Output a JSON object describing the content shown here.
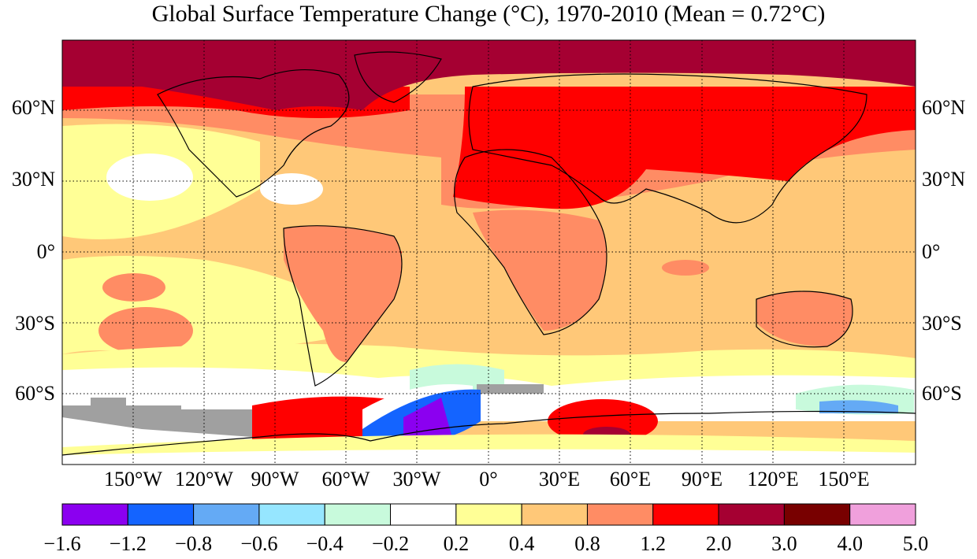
{
  "title": "Global Surface Temperature Change (°C), 1970-2010 (Mean = 0.72°C)",
  "map": {
    "projection": "equirectangular",
    "lat_labels": [
      "60°N",
      "30°N",
      "0°",
      "30°S",
      "60°S"
    ],
    "lat_values": [
      60,
      30,
      0,
      -30,
      -60
    ],
    "lon_labels": [
      "150°W",
      "120°W",
      "90°W",
      "60°W",
      "30°W",
      "0°",
      "30°E",
      "60°E",
      "90°E",
      "120°E",
      "150°E"
    ],
    "lon_values": [
      -150,
      -120,
      -90,
      -60,
      -30,
      0,
      30,
      60,
      90,
      120,
      150
    ],
    "missing_data_color": "#a0a0a0",
    "grid": "dotted",
    "coastline_color": "#000000"
  },
  "colorbar": {
    "ticks": [
      "−1.6",
      "−1.2",
      "−0.8",
      "−0.6",
      "−0.4",
      "−0.2",
      "0.2",
      "0.4",
      "0.8",
      "1.2",
      "2.0",
      "3.0",
      "4.0",
      "5.0"
    ],
    "colors": [
      "#8b00f0",
      "#1464ff",
      "#64aaf5",
      "#96e6ff",
      "#c8fadc",
      "#ffffff",
      "#ffff96",
      "#ffc878",
      "#ff8c64",
      "#ff0000",
      "#a50032",
      "#780000",
      "#f0a0dc"
    ]
  }
}
